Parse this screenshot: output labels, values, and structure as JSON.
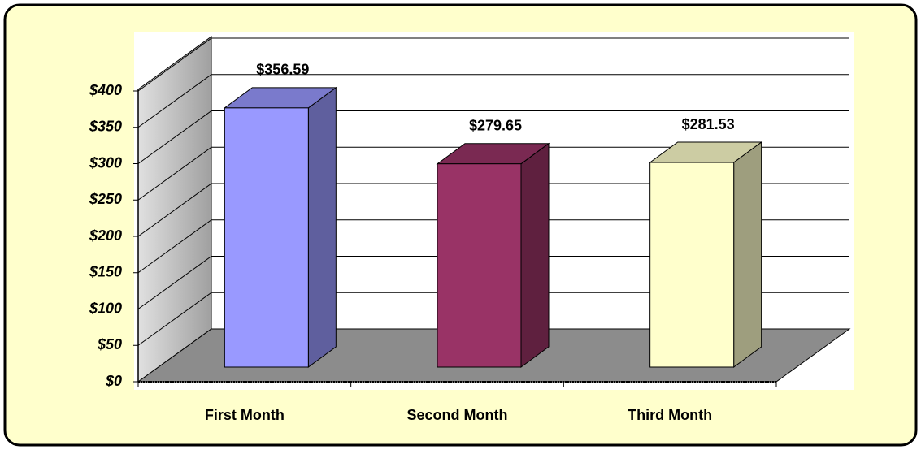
{
  "chart_data": {
    "type": "bar3d",
    "categories": [
      "First Month",
      "Second Month",
      "Third Month"
    ],
    "values": [
      356.59,
      279.65,
      281.53
    ],
    "value_labels": [
      "$356.59",
      "$279.65",
      "$281.53"
    ],
    "colors": [
      "#9999ff",
      "#993366",
      "#ffffcc"
    ],
    "ylim": [
      0,
      400
    ],
    "yticks": [
      {
        "value": 0,
        "label": "$0"
      },
      {
        "value": 50,
        "label": "$50"
      },
      {
        "value": 100,
        "label": "$100"
      },
      {
        "value": 150,
        "label": "$150"
      },
      {
        "value": 200,
        "label": "$200"
      },
      {
        "value": 250,
        "label": "$250"
      },
      {
        "value": 300,
        "label": "$300"
      },
      {
        "value": 350,
        "label": "$350"
      },
      {
        "value": 400,
        "label": "$400"
      }
    ],
    "grid": true
  }
}
